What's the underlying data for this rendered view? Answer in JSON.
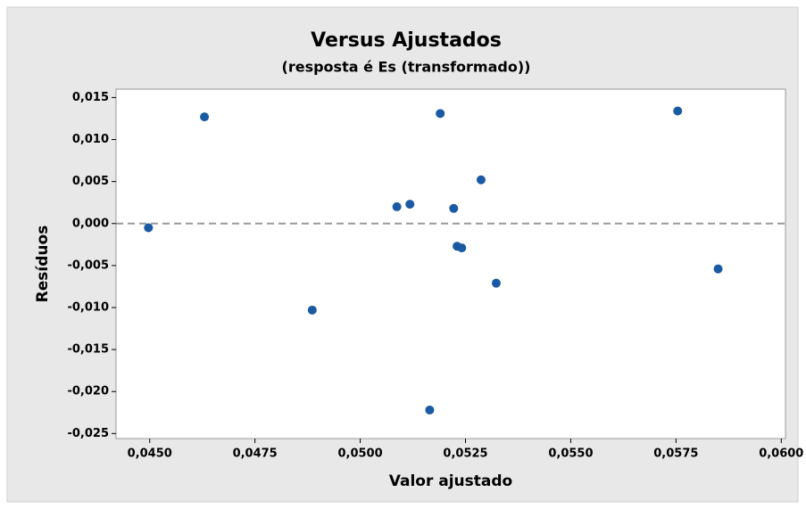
{
  "chart_data": {
    "type": "scatter",
    "title": "Versus Ajustados",
    "subtitle": "(resposta é Es (transformado))",
    "xlabel": "Valor ajustado",
    "ylabel": "Resíduos",
    "color": "#1a5aa3",
    "reference_line": 0,
    "x": [
      0.04497,
      0.0463,
      0.04886,
      0.05087,
      0.05118,
      0.0519,
      0.05165,
      0.05222,
      0.0523,
      0.05241,
      0.05287,
      0.05323,
      0.05754,
      0.0585
    ],
    "values": [
      -0.0005,
      0.0127,
      -0.0103,
      0.002,
      0.0023,
      0.0131,
      -0.0222,
      0.0018,
      -0.0027,
      -0.0029,
      0.0052,
      -0.0071,
      0.0134,
      -0.0054
    ],
    "xlim": [
      0.0442,
      0.0601
    ],
    "xticks": [
      {
        "value": 0.045,
        "label": "0,0450"
      },
      {
        "value": 0.0475,
        "label": "0,0475"
      },
      {
        "value": 0.05,
        "label": "0,0500"
      },
      {
        "value": 0.0525,
        "label": "0,0525"
      },
      {
        "value": 0.055,
        "label": "0,0550"
      },
      {
        "value": 0.0575,
        "label": "0,0575"
      },
      {
        "value": 0.06,
        "label": "0,0600"
      }
    ],
    "ylim": [
      -0.0256,
      0.016
    ],
    "yticks": [
      {
        "value": 0.015,
        "label": "0,015"
      },
      {
        "value": 0.01,
        "label": "0,010"
      },
      {
        "value": 0.005,
        "label": "0,005"
      },
      {
        "value": 0,
        "label": "0,000"
      },
      {
        "value": -0.005,
        "label": "-0,005"
      },
      {
        "value": -0.01,
        "label": "-0,010"
      },
      {
        "value": -0.015,
        "label": "-0,015"
      },
      {
        "value": -0.02,
        "label": "-0,020"
      },
      {
        "value": -0.025,
        "label": "-0,025"
      }
    ]
  }
}
